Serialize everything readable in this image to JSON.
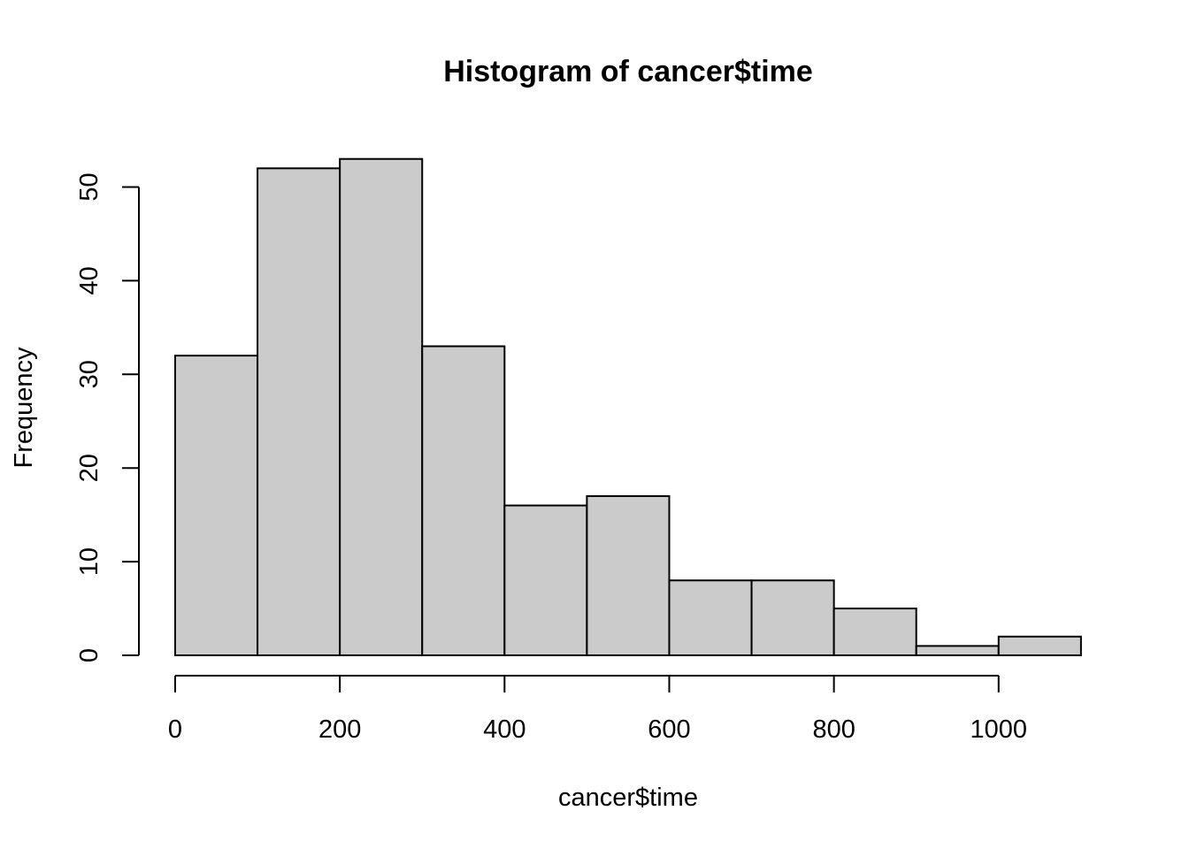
{
  "chart_data": {
    "type": "bar",
    "title": "Histogram of cancer$time",
    "xlabel": "cancer$time",
    "ylabel": "Frequency",
    "bins": [
      {
        "from": 0,
        "to": 100,
        "count": 32
      },
      {
        "from": 100,
        "to": 200,
        "count": 52
      },
      {
        "from": 200,
        "to": 300,
        "count": 53
      },
      {
        "from": 300,
        "to": 400,
        "count": 33
      },
      {
        "from": 400,
        "to": 500,
        "count": 16
      },
      {
        "from": 500,
        "to": 600,
        "count": 17
      },
      {
        "from": 600,
        "to": 700,
        "count": 8
      },
      {
        "from": 700,
        "to": 800,
        "count": 8
      },
      {
        "from": 800,
        "to": 900,
        "count": 5
      },
      {
        "from": 900,
        "to": 1000,
        "count": 1
      },
      {
        "from": 1000,
        "to": 1100,
        "count": 2
      }
    ],
    "xticks": [
      0,
      200,
      400,
      600,
      800,
      1000
    ],
    "yticks": [
      0,
      10,
      20,
      30,
      40,
      50
    ],
    "xlim": [
      0,
      1100
    ],
    "ylim": [
      0,
      53
    ],
    "grid": false,
    "colors": {
      "bar_fill": "#cbcbcb",
      "bar_stroke": "#000000"
    }
  }
}
